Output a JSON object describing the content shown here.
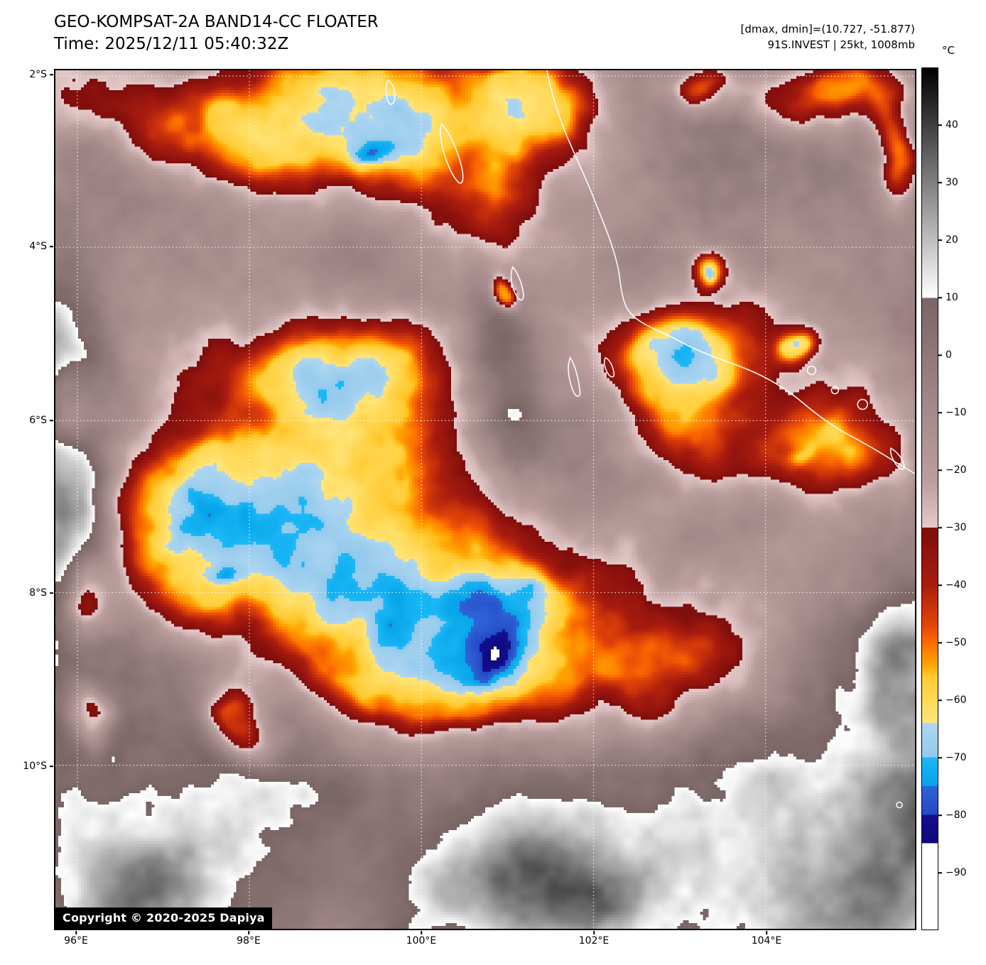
{
  "header": {
    "title": "GEO-KOMPSAT-2A BAND14-CC FLOATER",
    "time": "Time: 2025/12/11 05:40:32Z",
    "range_info": "[dmax, dmin]=(10.727, -51.877)",
    "storm_info": "91S.INVEST | 25kt, 1008mb"
  },
  "axes": {
    "lat_labels": [
      "2°S",
      "4°S",
      "6°S",
      "8°S",
      "10°S"
    ],
    "lon_labels": [
      "96°E",
      "98°E",
      "100°E",
      "102°E",
      "104°E"
    ]
  },
  "colorbar": {
    "unit": "°C",
    "tick_labels": [
      "40",
      "30",
      "20",
      "10",
      "0",
      "−10",
      "−20",
      "−30",
      "−40",
      "−50",
      "−60",
      "−70",
      "−80",
      "−90"
    ],
    "ticks": [
      40,
      30,
      20,
      10,
      0,
      -10,
      -20,
      -30,
      -40,
      -50,
      -60,
      -70,
      -80,
      -90
    ],
    "domain": [
      50,
      -100
    ],
    "stops": [
      {
        "t": 50,
        "c": "#000000"
      },
      {
        "t": 10,
        "c": "#ffffff"
      },
      {
        "t": 10,
        "c": "#7a6565"
      },
      {
        "t": -8,
        "c": "#a18787"
      },
      {
        "t": -22,
        "c": "#bb9e9e"
      },
      {
        "t": -30,
        "c": "#e6caca"
      },
      {
        "t": -30,
        "c": "#7d0d0d"
      },
      {
        "t": -40,
        "c": "#aa1c0e"
      },
      {
        "t": -47,
        "c": "#e34508"
      },
      {
        "t": -50,
        "c": "#fb6a00"
      },
      {
        "t": -54,
        "c": "#ffa700"
      },
      {
        "t": -56,
        "c": "#ffcb33"
      },
      {
        "t": -64,
        "c": "#ffe57a"
      },
      {
        "t": -64,
        "c": "#aed6f1"
      },
      {
        "t": -70,
        "c": "#93c9ec"
      },
      {
        "t": -70,
        "c": "#1cb8f7"
      },
      {
        "t": -75,
        "c": "#05a3e8"
      },
      {
        "t": -75,
        "c": "#2f63d8"
      },
      {
        "t": -80,
        "c": "#2349c4"
      },
      {
        "t": -80,
        "c": "#140e91"
      },
      {
        "t": -85,
        "c": "#0e0a7a"
      },
      {
        "t": -85,
        "c": "#ffffff"
      },
      {
        "t": -100,
        "c": "#ffffff"
      }
    ]
  },
  "map": {
    "copyright": "Copyright © 2020-2025 Dapiya",
    "gridline_color": "#ffffff",
    "coastline_color": "#ffffff"
  },
  "chart_data": {
    "type": "heatmap",
    "description": "GEO-KOMPSAT-2A Band 14 infrared brightness temperature floater image for invest 91S",
    "lon_range_deg_e": [
      95.74,
      105.74
    ],
    "lat_range_deg": [
      -11.92,
      -1.93
    ],
    "gridline_lons_deg_e": [
      96,
      98,
      100,
      102,
      104
    ],
    "gridline_lats_deg": [
      -2,
      -4,
      -6,
      -8,
      -10
    ],
    "temp_scale_c": [
      50,
      -100
    ],
    "dmax_c": 10.727,
    "dmin_c": -51.877,
    "storm_id": "91S.INVEST",
    "storm_wind_kt": 25,
    "storm_pressure_mb": 1008
  }
}
